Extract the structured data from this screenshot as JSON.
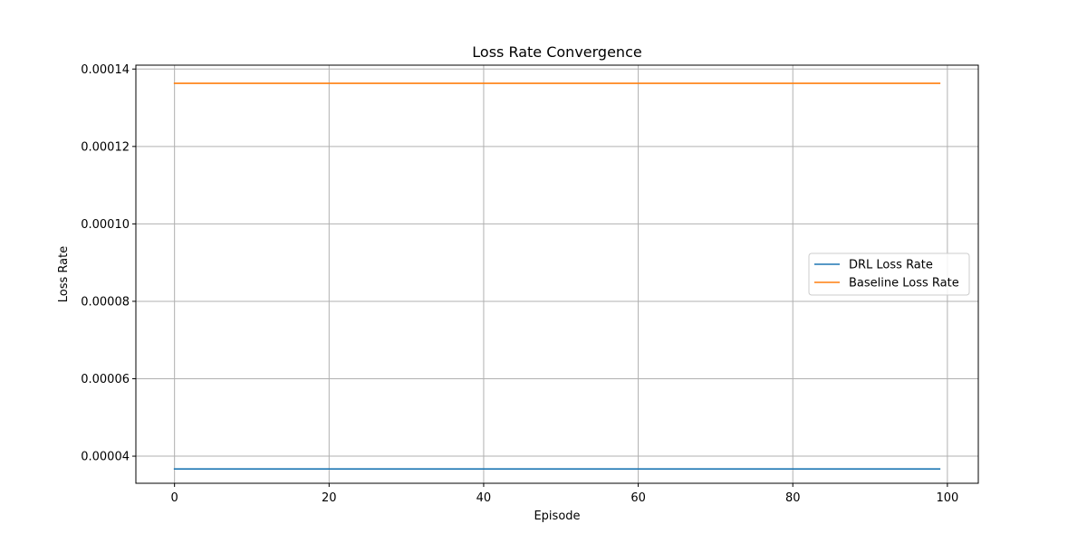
{
  "chart_data": {
    "type": "line",
    "title": "Loss Rate Convergence",
    "xlabel": "Episode",
    "ylabel": "Loss Rate",
    "xlim": [
      -5,
      104
    ],
    "ylim": [
      3.3e-05,
      0.000141
    ],
    "xticks": [
      0,
      20,
      40,
      60,
      80,
      100
    ],
    "xtick_labels": [
      "0",
      "20",
      "40",
      "60",
      "80",
      "100"
    ],
    "yticks": [
      4e-05,
      6e-05,
      8e-05,
      0.0001,
      0.00012,
      0.00014
    ],
    "ytick_labels": [
      "0.00004",
      "0.00006",
      "0.00008",
      "0.00010",
      "0.00012",
      "0.00014"
    ],
    "grid": true,
    "legend_position": "center-right",
    "x_range": [
      0,
      99
    ],
    "series": [
      {
        "name": "DRL Loss Rate",
        "color": "#1f77b4",
        "x": [
          0,
          99
        ],
        "values": [
          3.67e-05,
          3.67e-05
        ]
      },
      {
        "name": "Baseline Loss Rate",
        "color": "#ff7f0e",
        "x": [
          0,
          99
        ],
        "values": [
          0.0001363,
          0.0001363
        ]
      }
    ]
  }
}
